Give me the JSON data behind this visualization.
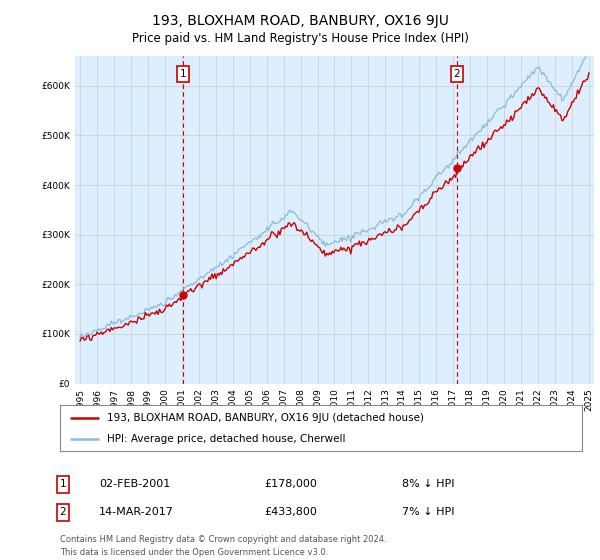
{
  "title": "193, BLOXHAM ROAD, BANBURY, OX16 9JU",
  "subtitle": "Price paid vs. HM Land Registry's House Price Index (HPI)",
  "hpi_color": "#88bbdd",
  "property_color": "#cc0000",
  "sale1_date_label": "02-FEB-2001",
  "sale1_price": 178000,
  "sale1_year": 2001.08,
  "sale1_hpi_pct": "8% ↓ HPI",
  "sale2_date_label": "14-MAR-2017",
  "sale2_price": 433800,
  "sale2_year": 2017.2,
  "sale2_hpi_pct": "7% ↓ HPI",
  "legend_line1": "193, BLOXHAM ROAD, BANBURY, OX16 9JU (detached house)",
  "legend_line2": "HPI: Average price, detached house, Cherwell",
  "footer1": "Contains HM Land Registry data © Crown copyright and database right 2024.",
  "footer2": "This data is licensed under the Open Government Licence v3.0.",
  "ylim": [
    0,
    660000
  ],
  "yticks": [
    0,
    100000,
    200000,
    300000,
    400000,
    500000,
    600000
  ],
  "xlim_left": 1994.7,
  "xlim_right": 2025.3,
  "background_color": "#ddeeff",
  "plot_bg": "#ffffff",
  "seed": 12
}
